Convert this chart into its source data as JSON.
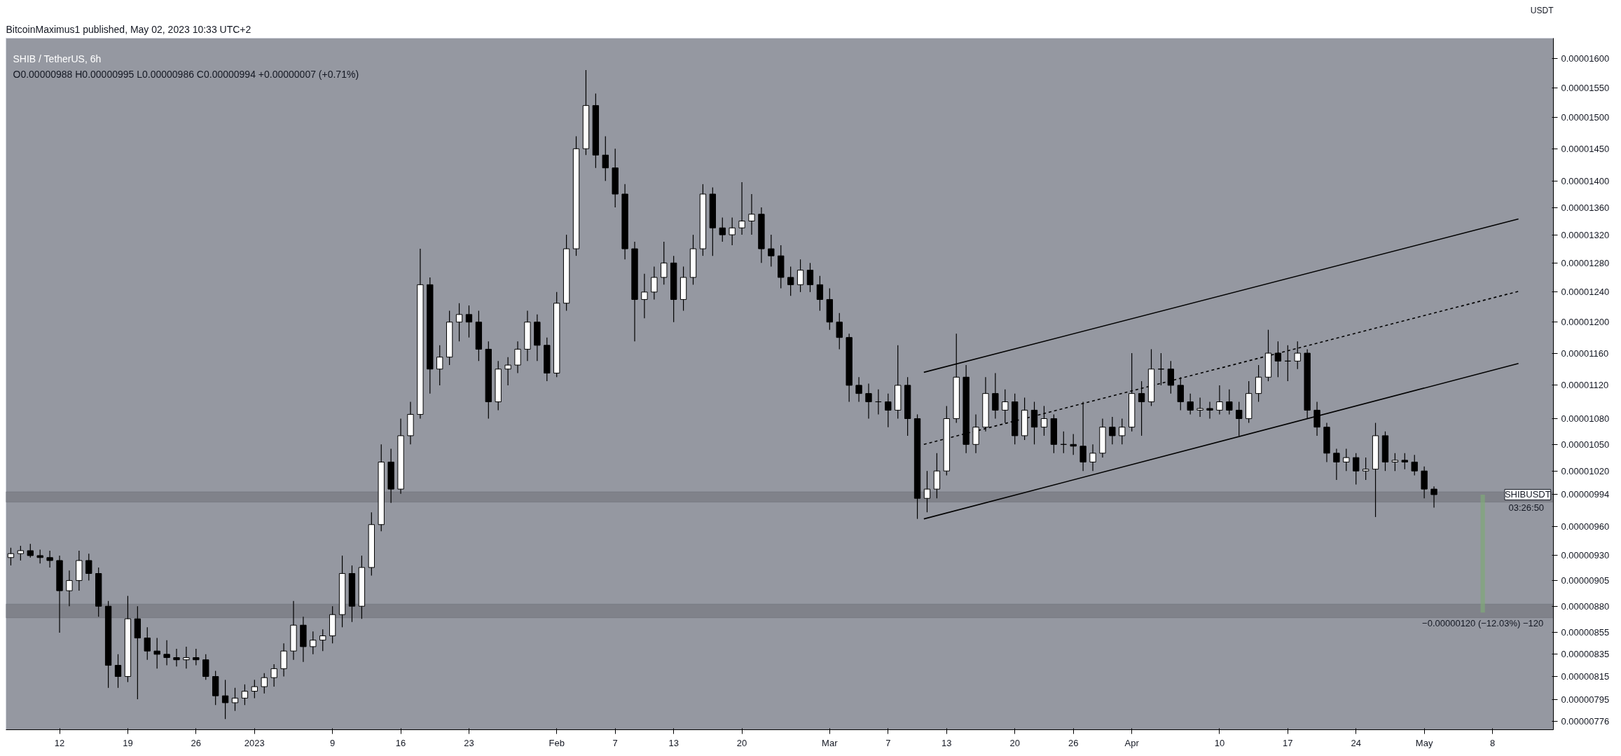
{
  "chart_data": {
    "type": "candlestick",
    "title": "SHIB / TetherUS, 6h",
    "subtitle": "O0.00000988 H0.00000995 L0.00000986 C0.00000994 +0.00000007 (+0.71%)",
    "ylabel": "USDT",
    "color": "#000000",
    "grid": false,
    "annotations": [
      "BitcoinMaximus1 published, May 02, 2023 10:33 UTC+2",
      {
        "text": "−0.00000120 (−12.03%) −120",
        "x": "2023-05-07",
        "y": 8.74e-06
      },
      {
        "text": "SHIBUSDT",
        "x": "2023-05-09T06:00",
        "y": 9.94e-06
      },
      "03:26:50"
    ],
    "x": [
      "2022-12-07",
      "2022-12-08",
      "2022-12-09",
      "2022-12-10",
      "2022-12-11",
      "2022-12-12",
      "2022-12-13",
      "2022-12-14",
      "2022-12-15",
      "2022-12-16",
      "2022-12-17",
      "2022-12-18",
      "2022-12-19",
      "2022-12-20",
      "2022-12-21",
      "2022-12-22",
      "2022-12-23",
      "2022-12-24",
      "2022-12-25",
      "2022-12-26",
      "2022-12-27",
      "2022-12-28",
      "2022-12-29",
      "2022-12-30",
      "2022-12-31",
      "2023-01-01",
      "2023-01-02",
      "2023-01-03",
      "2023-01-04",
      "2023-01-05",
      "2023-01-06",
      "2023-01-07",
      "2023-01-08",
      "2023-01-09",
      "2023-01-10",
      "2023-01-11",
      "2023-01-12",
      "2023-01-13",
      "2023-01-14",
      "2023-01-15",
      "2023-01-16",
      "2023-01-17",
      "2023-01-18",
      "2023-01-19",
      "2023-01-20",
      "2023-01-21",
      "2023-01-22",
      "2023-01-23",
      "2023-01-24",
      "2023-01-25",
      "2023-01-26",
      "2023-01-27",
      "2023-01-28",
      "2023-01-29",
      "2023-01-30",
      "2023-01-31",
      "2023-02-01",
      "2023-02-02",
      "2023-02-03",
      "2023-02-04",
      "2023-02-05",
      "2023-02-06",
      "2023-02-07",
      "2023-02-08",
      "2023-02-09",
      "2023-02-10",
      "2023-02-11",
      "2023-02-12",
      "2023-02-13",
      "2023-02-14",
      "2023-02-15",
      "2023-02-16",
      "2023-02-17",
      "2023-02-18",
      "2023-02-19",
      "2023-02-20",
      "2023-02-21",
      "2023-02-22",
      "2023-02-23",
      "2023-02-24",
      "2023-02-25",
      "2023-02-26",
      "2023-02-27",
      "2023-02-28",
      "2023-03-01",
      "2023-03-02",
      "2023-03-03",
      "2023-03-04",
      "2023-03-05",
      "2023-03-06",
      "2023-03-07",
      "2023-03-08",
      "2023-03-09",
      "2023-03-10",
      "2023-03-11",
      "2023-03-12",
      "2023-03-13",
      "2023-03-14",
      "2023-03-15",
      "2023-03-16",
      "2023-03-17",
      "2023-03-18",
      "2023-03-19",
      "2023-03-20",
      "2023-03-21",
      "2023-03-22",
      "2023-03-23",
      "2023-03-24",
      "2023-03-25",
      "2023-03-26",
      "2023-03-27",
      "2023-03-28",
      "2023-03-29",
      "2023-03-30",
      "2023-03-31",
      "2023-04-01",
      "2023-04-02",
      "2023-04-03",
      "2023-04-04",
      "2023-04-05",
      "2023-04-06",
      "2023-04-07",
      "2023-04-08",
      "2023-04-09",
      "2023-04-10",
      "2023-04-11",
      "2023-04-12",
      "2023-04-13",
      "2023-04-14",
      "2023-04-15",
      "2023-04-16",
      "2023-04-17",
      "2023-04-18",
      "2023-04-19",
      "2023-04-20",
      "2023-04-21",
      "2023-04-22",
      "2023-04-23",
      "2023-04-24",
      "2023-04-25",
      "2023-04-26",
      "2023-04-27",
      "2023-04-28",
      "2023-04-29",
      "2023-04-30",
      "2023-05-01",
      "2023-05-02"
    ],
    "ohlc": [
      [
        9.28e-06,
        9.38e-06,
        9.2e-06,
        9.32e-06
      ],
      [
        9.32e-06,
        9.4e-06,
        9.25e-06,
        9.35e-06
      ],
      [
        9.35e-06,
        9.42e-06,
        9.28e-06,
        9.3e-06
      ],
      [
        9.3e-06,
        9.36e-06,
        9.22e-06,
        9.28e-06
      ],
      [
        9.28e-06,
        9.35e-06,
        9.18e-06,
        9.25e-06
      ],
      [
        9.25e-06,
        9.3e-06,
        8.55e-06,
        8.95e-06
      ],
      [
        8.95e-06,
        9.15e-06,
        8.8e-06,
        9.05e-06
      ],
      [
        9.05e-06,
        9.35e-06,
        8.95e-06,
        9.25e-06
      ],
      [
        9.25e-06,
        9.32e-06,
        9.05e-06,
        9.12e-06
      ],
      [
        9.12e-06,
        9.18e-06,
        8.7e-06,
        8.8e-06
      ],
      [
        8.8e-06,
        8.85e-06,
        8.05e-06,
        8.25e-06
      ],
      [
        8.25e-06,
        8.35e-06,
        8.05e-06,
        8.15e-06
      ],
      [
        8.15e-06,
        8.9e-06,
        8.1e-06,
        8.68e-06
      ],
      [
        8.68e-06,
        8.8e-06,
        7.95e-06,
        8.5e-06
      ],
      [
        8.5e-06,
        8.6e-06,
        8.3e-06,
        8.38e-06
      ],
      [
        8.38e-06,
        8.5e-06,
        8.22e-06,
        8.35e-06
      ],
      [
        8.35e-06,
        8.48e-06,
        8.25e-06,
        8.32e-06
      ],
      [
        8.32e-06,
        8.4e-06,
        8.24e-06,
        8.3e-06
      ],
      [
        8.3e-06,
        8.42e-06,
        8.22e-06,
        8.32e-06
      ],
      [
        8.32e-06,
        8.4e-06,
        8.25e-06,
        8.3e-06
      ],
      [
        8.3e-06,
        8.35e-06,
        8.12e-06,
        8.15e-06
      ],
      [
        8.15e-06,
        8.2e-06,
        7.9e-06,
        7.98e-06
      ],
      [
        7.98e-06,
        8.12e-06,
        7.78e-06,
        7.92e-06
      ],
      [
        7.92e-06,
        8.05e-06,
        7.85e-06,
        7.96e-06
      ],
      [
        7.96e-06,
        8.08e-06,
        7.9e-06,
        8.02e-06
      ],
      [
        8.02e-06,
        8.12e-06,
        7.96e-06,
        8.06e-06
      ],
      [
        8.06e-06,
        8.18e-06,
        8e-06,
        8.14e-06
      ],
      [
        8.14e-06,
        8.26e-06,
        8.06e-06,
        8.22e-06
      ],
      [
        8.22e-06,
        8.45e-06,
        8.15e-06,
        8.38e-06
      ],
      [
        8.38e-06,
        8.85e-06,
        8.3e-06,
        8.62e-06
      ],
      [
        8.62e-06,
        8.7e-06,
        8.28e-06,
        8.42e-06
      ],
      [
        8.42e-06,
        8.56e-06,
        8.35e-06,
        8.48e-06
      ],
      [
        8.48e-06,
        8.58e-06,
        8.38e-06,
        8.52e-06
      ],
      [
        8.52e-06,
        8.8e-06,
        8.45e-06,
        8.72e-06
      ],
      [
        8.72e-06,
        9.3e-06,
        8.6e-06,
        9.12e-06
      ],
      [
        9.12e-06,
        9.2e-06,
        8.65e-06,
        8.8e-06
      ],
      [
        8.8e-06,
        9.3e-06,
        8.68e-06,
        9.18e-06
      ],
      [
        9.18e-06,
        9.75e-06,
        9.1e-06,
        9.62e-06
      ],
      [
        9.62e-06,
        1.05e-05,
        9.55e-06,
        1.03e-05
      ],
      [
        1.03e-05,
        1.045e-05,
        9.85e-06,
        1e-05
      ],
      [
        1e-05,
        1.08e-05,
        9.95e-06,
        1.06e-05
      ],
      [
        1.06e-05,
        1.1e-05,
        1.05e-05,
        1.085e-05
      ],
      [
        1.085e-05,
        1.3e-05,
        1.08e-05,
        1.25e-05
      ],
      [
        1.25e-05,
        1.26e-05,
        1.11e-05,
        1.14e-05
      ],
      [
        1.14e-05,
        1.17e-05,
        1.12e-05,
        1.155e-05
      ],
      [
        1.155e-05,
        1.215e-05,
        1.145e-05,
        1.2e-05
      ],
      [
        1.2e-05,
        1.225e-05,
        1.175e-05,
        1.21e-05
      ],
      [
        1.21e-05,
        1.222e-05,
        1.18e-05,
        1.2e-05
      ],
      [
        1.2e-05,
        1.215e-05,
        1.15e-05,
        1.165e-05
      ],
      [
        1.165e-05,
        1.175e-05,
        1.08e-05,
        1.1e-05
      ],
      [
        1.1e-05,
        1.15e-05,
        1.09e-05,
        1.14e-05
      ],
      [
        1.14e-05,
        1.155e-05,
        1.12e-05,
        1.145e-05
      ],
      [
        1.145e-05,
        1.175e-05,
        1.135e-05,
        1.165e-05
      ],
      [
        1.165e-05,
        1.215e-05,
        1.15e-05,
        1.2e-05
      ],
      [
        1.2e-05,
        1.21e-05,
        1.15e-05,
        1.17e-05
      ],
      [
        1.17e-05,
        1.18e-05,
        1.125e-05,
        1.135e-05
      ],
      [
        1.135e-05,
        1.24e-05,
        1.13e-05,
        1.225e-05
      ],
      [
        1.225e-05,
        1.32e-05,
        1.215e-05,
        1.3e-05
      ],
      [
        1.3e-05,
        1.47e-05,
        1.29e-05,
        1.45e-05
      ],
      [
        1.45e-05,
        1.58e-05,
        1.44e-05,
        1.52e-05
      ],
      [
        1.52e-05,
        1.54e-05,
        1.42e-05,
        1.44e-05
      ],
      [
        1.44e-05,
        1.47e-05,
        1.4e-05,
        1.42e-05
      ],
      [
        1.42e-05,
        1.45e-05,
        1.36e-05,
        1.38e-05
      ],
      [
        1.38e-05,
        1.395e-05,
        1.285e-05,
        1.3e-05
      ],
      [
        1.3e-05,
        1.31e-05,
        1.175e-05,
        1.23e-05
      ],
      [
        1.23e-05,
        1.265e-05,
        1.205e-05,
        1.24e-05
      ],
      [
        1.24e-05,
        1.275e-05,
        1.23e-05,
        1.26e-05
      ],
      [
        1.26e-05,
        1.31e-05,
        1.25e-05,
        1.28e-05
      ],
      [
        1.28e-05,
        1.29e-05,
        1.2e-05,
        1.23e-05
      ],
      [
        1.23e-05,
        1.275e-05,
        1.215e-05,
        1.26e-05
      ],
      [
        1.26e-05,
        1.32e-05,
        1.25e-05,
        1.3e-05
      ],
      [
        1.3e-05,
        1.395e-05,
        1.29e-05,
        1.38e-05
      ],
      [
        1.38e-05,
        1.39e-05,
        1.29e-05,
        1.33e-05
      ],
      [
        1.33e-05,
        1.345e-05,
        1.31e-05,
        1.32e-05
      ],
      [
        1.32e-05,
        1.345e-05,
        1.305e-05,
        1.33e-05
      ],
      [
        1.33e-05,
        1.398e-05,
        1.32e-05,
        1.34e-05
      ],
      [
        1.34e-05,
        1.38e-05,
        1.32e-05,
        1.35e-05
      ],
      [
        1.35e-05,
        1.36e-05,
        1.28e-05,
        1.3e-05
      ],
      [
        1.3e-05,
        1.32e-05,
        1.275e-05,
        1.29e-05
      ],
      [
        1.29e-05,
        1.305e-05,
        1.245e-05,
        1.26e-05
      ],
      [
        1.26e-05,
        1.275e-05,
        1.235e-05,
        1.25e-05
      ],
      [
        1.25e-05,
        1.285e-05,
        1.24e-05,
        1.27e-05
      ],
      [
        1.27e-05,
        1.28e-05,
        1.24e-05,
        1.25e-05
      ],
      [
        1.25e-05,
        1.262e-05,
        1.215e-05,
        1.23e-05
      ],
      [
        1.23e-05,
        1.245e-05,
        1.19e-05,
        1.2e-05
      ],
      [
        1.2e-05,
        1.212e-05,
        1.165e-05,
        1.18e-05
      ],
      [
        1.18e-05,
        1.185e-05,
        1.1e-05,
        1.12e-05
      ],
      [
        1.12e-05,
        1.13e-05,
        1.1e-05,
        1.11e-05
      ],
      [
        1.11e-05,
        1.122e-05,
        1.08e-05,
        1.1e-05
      ],
      [
        1.1e-05,
        1.115e-05,
        1.085e-05,
        1.1e-05
      ],
      [
        1.1e-05,
        1.11e-05,
        1.07e-05,
        1.09e-05
      ],
      [
        1.09e-05,
        1.17e-05,
        1.08e-05,
        1.12e-05
      ],
      [
        1.12e-05,
        1.13e-05,
        1.06e-05,
        1.08e-05
      ],
      [
        1.08e-05,
        1.085e-05,
        9.68e-06,
        9.9e-06
      ],
      [
        9.9e-06,
        1.02e-05,
        9.75e-06,
        1e-05
      ],
      [
        1e-05,
        1.04e-05,
        9.9e-06,
        1.02e-05
      ],
      [
        1.02e-05,
        1.095e-05,
        1.015e-05,
        1.08e-05
      ],
      [
        1.08e-05,
        1.185e-05,
        1.075e-05,
        1.13e-05
      ],
      [
        1.13e-05,
        1.145e-05,
        1.04e-05,
        1.05e-05
      ],
      [
        1.05e-05,
        1.085e-05,
        1.04e-05,
        1.07e-05
      ],
      [
        1.07e-05,
        1.13e-05,
        1.065e-05,
        1.11e-05
      ],
      [
        1.11e-05,
        1.135e-05,
        1.08e-05,
        1.09e-05
      ],
      [
        1.09e-05,
        1.115e-05,
        1.075e-05,
        1.1e-05
      ],
      [
        1.1e-05,
        1.11e-05,
        1.05e-05,
        1.06e-05
      ],
      [
        1.06e-05,
        1.105e-05,
        1.055e-05,
        1.09e-05
      ],
      [
        1.09e-05,
        1.1e-05,
        1.05e-05,
        1.07e-05
      ],
      [
        1.07e-05,
        1.095e-05,
        1.06e-05,
        1.08e-05
      ],
      [
        1.08e-05,
        1.085e-05,
        1.04e-05,
        1.05e-05
      ],
      [
        1.05e-05,
        1.065e-05,
        1.04e-05,
        1.05e-05
      ],
      [
        1.05e-05,
        1.062e-05,
        1.038e-05,
        1.048e-05
      ],
      [
        1.048e-05,
        1.1e-05,
        1.02e-05,
        1.03e-05
      ],
      [
        1.03e-05,
        1.05e-05,
        1.02e-05,
        1.04e-05
      ],
      [
        1.04e-05,
        1.08e-05,
        1.035e-05,
        1.07e-05
      ],
      [
        1.07e-05,
        1.082e-05,
        1.05e-05,
        1.06e-05
      ],
      [
        1.06e-05,
        1.08e-05,
        1.05e-05,
        1.07e-05
      ],
      [
        1.07e-05,
        1.16e-05,
        1.065e-05,
        1.11e-05
      ],
      [
        1.11e-05,
        1.125e-05,
        1.06e-05,
        1.1e-05
      ],
      [
        1.1e-05,
        1.165e-05,
        1.095e-05,
        1.14e-05
      ],
      [
        1.14e-05,
        1.16e-05,
        1.12e-05,
        1.14e-05
      ],
      [
        1.14e-05,
        1.15e-05,
        1.11e-05,
        1.12e-05
      ],
      [
        1.12e-05,
        1.13e-05,
        1.09e-05,
        1.1e-05
      ],
      [
        1.1e-05,
        1.11e-05,
        1.085e-05,
        1.09e-05
      ],
      [
        1.09e-05,
        1.105e-05,
        1.082e-05,
        1.092e-05
      ],
      [
        1.092e-05,
        1.1e-05,
        1.08e-05,
        1.09e-05
      ],
      [
        1.09e-05,
        1.12e-05,
        1.085e-05,
        1.1e-05
      ],
      [
        1.1e-05,
        1.115e-05,
        1.085e-05,
        1.09e-05
      ],
      [
        1.09e-05,
        1.1e-05,
        1.06e-05,
        1.08e-05
      ],
      [
        1.08e-05,
        1.125e-05,
        1.075e-05,
        1.11e-05
      ],
      [
        1.11e-05,
        1.145e-05,
        1.1e-05,
        1.13e-05
      ],
      [
        1.13e-05,
        1.19e-05,
        1.125e-05,
        1.16e-05
      ],
      [
        1.16e-05,
        1.175e-05,
        1.13e-05,
        1.15e-05
      ],
      [
        1.15e-05,
        1.17e-05,
        1.125e-05,
        1.15e-05
      ],
      [
        1.15e-05,
        1.175e-05,
        1.14e-05,
        1.16e-05
      ],
      [
        1.16e-05,
        1.165e-05,
        1.08e-05,
        1.09e-05
      ],
      [
        1.09e-05,
        1.1e-05,
        1.06e-05,
        1.07e-05
      ],
      [
        1.07e-05,
        1.075e-05,
        1.03e-05,
        1.04e-05
      ],
      [
        1.04e-05,
        1.045e-05,
        1.01e-05,
        1.03e-05
      ],
      [
        1.03e-05,
        1.045e-05,
        1.02e-05,
        1.035e-05
      ],
      [
        1.035e-05,
        1.04e-05,
        1.005e-05,
        1.02e-05
      ],
      [
        1.02e-05,
        1.035e-05,
        1.01e-05,
        1.022e-05
      ],
      [
        1.022e-05,
        1.075e-05,
        9.7e-06,
        1.06e-05
      ],
      [
        1.06e-05,
        1.065e-05,
        1.02e-05,
        1.03e-05
      ],
      [
        1.03e-05,
        1.04e-05,
        1.02e-05,
        1.032e-05
      ],
      [
        1.032e-05,
        1.04e-05,
        1.022e-05,
        1.03e-05
      ],
      [
        1.03e-05,
        1.038e-05,
        1.015e-05,
        1.02e-05
      ],
      [
        1.02e-05,
        1.025e-05,
        9.9e-06,
        1e-05
      ],
      [
        1e-05,
        1.003e-05,
        9.8e-06,
        9.94e-06
      ]
    ],
    "series": [
      {
        "type": "line",
        "color": "#000000",
        "line_style": "solid",
        "x": [
          "2023-03-10T16:00",
          "2023-05-10T16:00"
        ],
        "values": [
          1.136e-05,
          1.343e-05
        ]
      },
      {
        "type": "line",
        "color": "#000000",
        "line_style": "dashed",
        "x": [
          "2023-03-10T16:00",
          "2023-05-10T16:00"
        ],
        "values": [
          1.05e-05,
          1.241e-05
        ]
      },
      {
        "type": "line",
        "color": "#000000",
        "line_style": "solid",
        "x": [
          "2023-03-10T16:00",
          "2023-05-10T16:00"
        ],
        "values": [
          9.68e-06,
          1.147e-05
        ]
      },
      {
        "type": "bar",
        "color": "#7fa878",
        "x": [
          "2023-05-07"
        ],
        "base": [
          9.94e-06
        ],
        "values": [
          -1.2e-06
        ]
      }
    ],
    "bands": [
      {
        "axis": "y",
        "from": 9.86e-06,
        "to": 9.97e-06,
        "color": "#7a7d85"
      },
      {
        "axis": "y",
        "from": 8.69e-06,
        "to": 8.82e-06,
        "color": "#7a7d85"
      }
    ],
    "log": true,
    "xlim": [
      "2022-12-06T12:00",
      "2023-05-14T06:00"
    ],
    "xticks": [
      {
        "value": "2022-12-12",
        "label": "12"
      },
      {
        "value": "2022-12-19",
        "label": "19"
      },
      {
        "value": "2022-12-26",
        "label": "26"
      },
      {
        "value": "2023-01-01",
        "label": "2023"
      },
      {
        "value": "2023-01-09",
        "label": "9"
      },
      {
        "value": "2023-01-16",
        "label": "16"
      },
      {
        "value": "2023-01-23",
        "label": "23"
      },
      {
        "value": "2023-02-01",
        "label": "Feb"
      },
      {
        "value": "2023-02-07",
        "label": "7"
      },
      {
        "value": "2023-02-13",
        "label": "13"
      },
      {
        "value": "2023-02-20",
        "label": "20"
      },
      {
        "value": "2023-03-01",
        "label": "Mar"
      },
      {
        "value": "2023-03-07",
        "label": "7"
      },
      {
        "value": "2023-03-13",
        "label": "13"
      },
      {
        "value": "2023-03-20",
        "label": "20"
      },
      {
        "value": "2023-03-26",
        "label": "26"
      },
      {
        "value": "2023-04-01",
        "label": "Apr"
      },
      {
        "value": "2023-04-10",
        "label": "10"
      },
      {
        "value": "2023-04-17",
        "label": "17"
      },
      {
        "value": "2023-04-24",
        "label": "24"
      },
      {
        "value": "2023-05-01",
        "label": "May"
      },
      {
        "value": "2023-05-08",
        "label": "8"
      }
    ],
    "ylim": [
      7.69e-06,
      1.636e-05
    ],
    "yticks": [
      {
        "value": 7.76e-06,
        "label": "0.00000776"
      },
      {
        "value": 7.95e-06,
        "label": "0.00000795"
      },
      {
        "value": 8.15e-06,
        "label": "0.00000815"
      },
      {
        "value": 8.35e-06,
        "label": "0.00000835"
      },
      {
        "value": 8.55e-06,
        "label": "0.00000855"
      },
      {
        "value": 8.8e-06,
        "label": "0.00000880"
      },
      {
        "value": 9.05e-06,
        "label": "0.00000905"
      },
      {
        "value": 9.3e-06,
        "label": "0.00000930"
      },
      {
        "value": 9.6e-06,
        "label": "0.00000960"
      },
      {
        "value": 9.94e-06,
        "label": "0.00000994"
      },
      {
        "value": 1.02e-05,
        "label": "0.00001020"
      },
      {
        "value": 1.05e-05,
        "label": "0.00001050"
      },
      {
        "value": 1.08e-05,
        "label": "0.00001080"
      },
      {
        "value": 1.12e-05,
        "label": "0.00001120"
      },
      {
        "value": 1.16e-05,
        "label": "0.00001160"
      },
      {
        "value": 1.2e-05,
        "label": "0.00001200"
      },
      {
        "value": 1.24e-05,
        "label": "0.00001240"
      },
      {
        "value": 1.28e-05,
        "label": "0.00001280"
      },
      {
        "value": 1.32e-05,
        "label": "0.00001320"
      },
      {
        "value": 1.36e-05,
        "label": "0.00001360"
      },
      {
        "value": 1.4e-05,
        "label": "0.00001400"
      },
      {
        "value": 1.45e-05,
        "label": "0.00001450"
      },
      {
        "value": 1.5e-05,
        "label": "0.00001500"
      },
      {
        "value": 1.55e-05,
        "label": "0.00001550"
      },
      {
        "value": 1.6e-05,
        "label": "0.00001600"
      }
    ]
  }
}
